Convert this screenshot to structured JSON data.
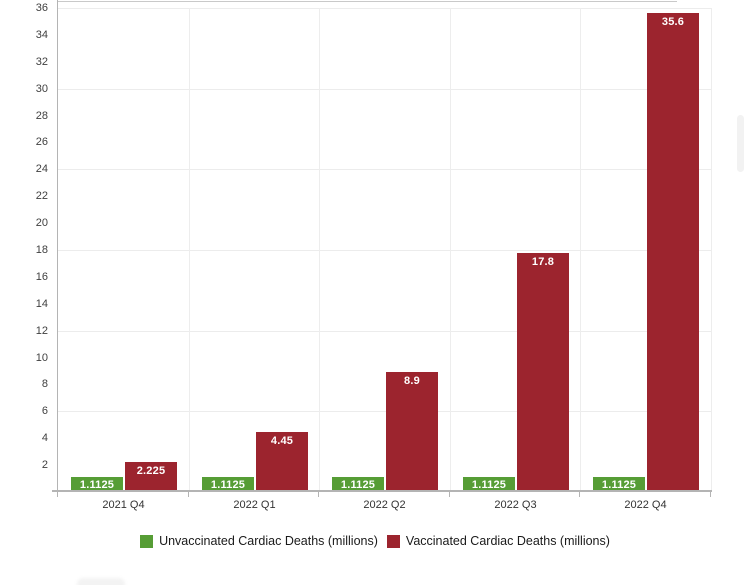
{
  "chart_data": {
    "type": "bar",
    "title": "",
    "xlabel": "",
    "ylabel": "",
    "categories": [
      "2021 Q4",
      "2022 Q1",
      "2022 Q2",
      "2022 Q3",
      "2022 Q4"
    ],
    "series": [
      {
        "key": "unvaccinated",
        "name": "Unvaccinated Cardiac Deaths (millions)",
        "color": "#569d35",
        "values": [
          1.1125,
          1.1125,
          1.1125,
          1.1125,
          1.1125
        ]
      },
      {
        "key": "vaccinated",
        "name": "Vaccinated Cardiac Deaths (millions)",
        "color": "#9c242e",
        "values": [
          2.225,
          4.45,
          8.9,
          17.8,
          35.6
        ]
      }
    ],
    "value_labels": [
      [
        "1.1125",
        "1.1125",
        "1.1125",
        "1.1125",
        "1.1125"
      ],
      [
        "2.225",
        "4.45",
        "8.9",
        "17.8",
        "35.6"
      ]
    ],
    "ylim": [
      0,
      36
    ],
    "y_tick_labels": [
      "2",
      "4",
      "6",
      "8",
      "10",
      "12",
      "14",
      "16",
      "18",
      "20",
      "22",
      "24",
      "26",
      "28",
      "30",
      "32",
      "34",
      "36"
    ],
    "gridline_values": [
      6,
      12,
      18,
      24,
      30,
      36
    ],
    "grid": true,
    "legend_position": "bottom",
    "bar_label_color": "#ffffff"
  },
  "colors": {
    "background": "#ffffff",
    "axis_line": "#b4b4b4",
    "gridline": "#ececec",
    "tick_label_color": "#404040",
    "legend_text": "#1a1a1a",
    "scrollbar_thumb": "#f2f2f2",
    "top_edge_line": "#c9c9c9"
  }
}
